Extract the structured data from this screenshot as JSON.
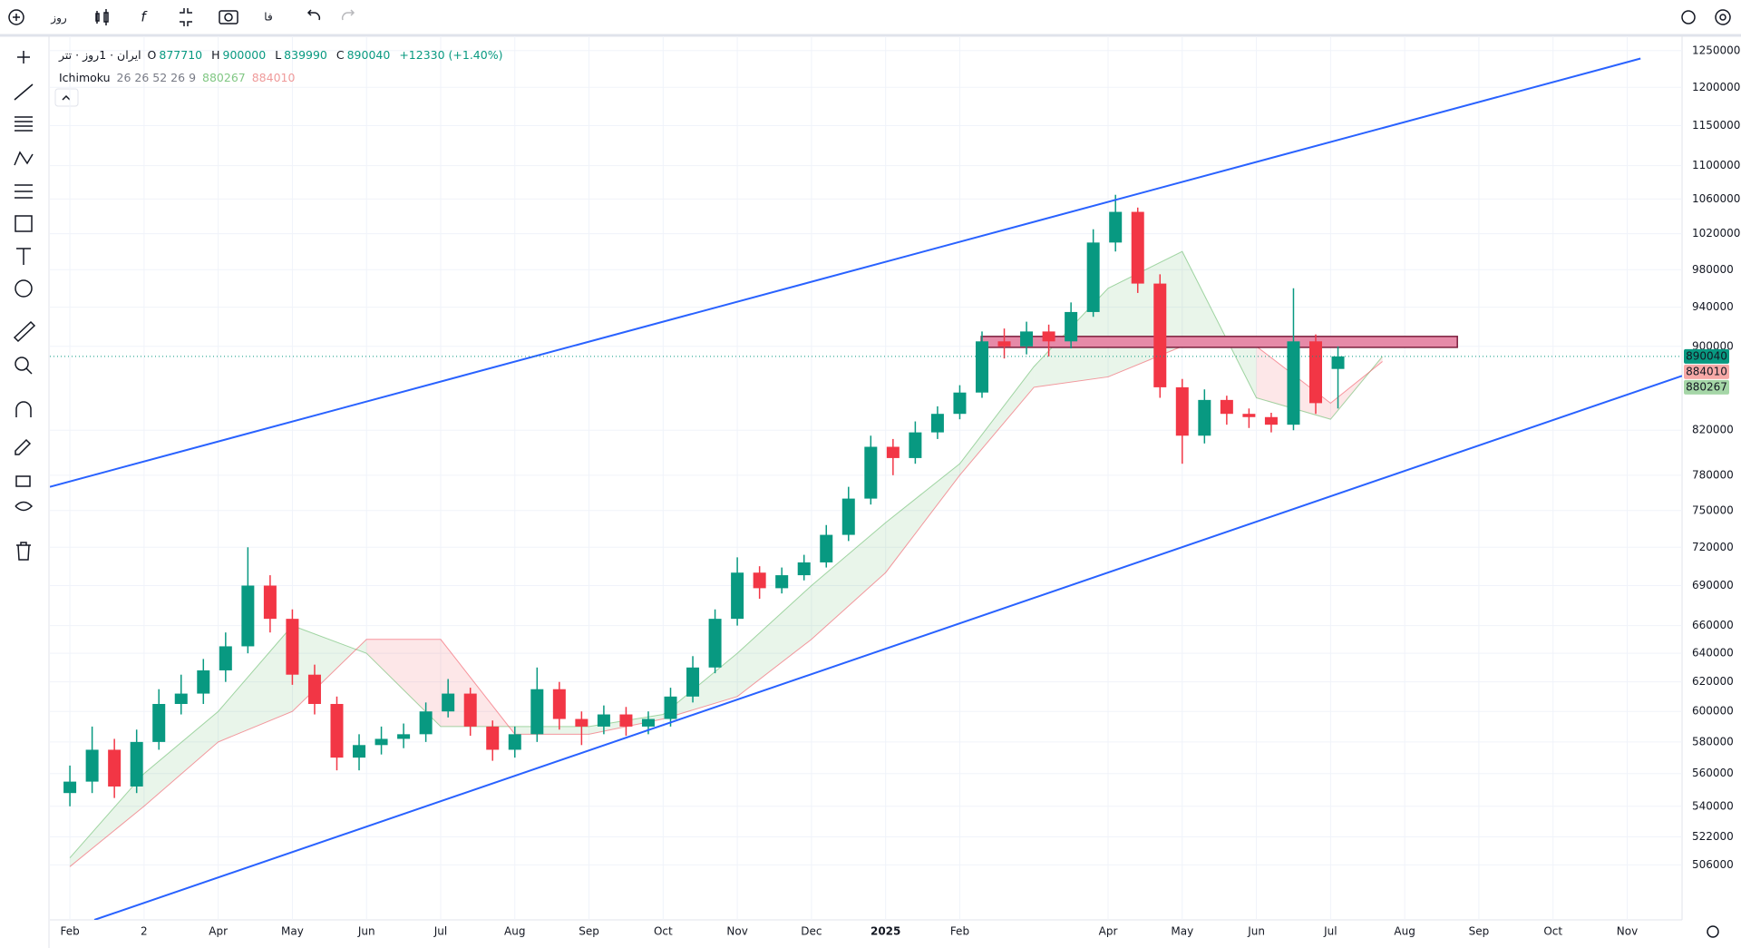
{
  "toolbar": {
    "interval": "روز",
    "language": "فا"
  },
  "legend": {
    "symbol": "ایران · 1روز · تتر",
    "fields": [
      {
        "label": "O",
        "value": "877710"
      },
      {
        "label": "H",
        "value": "900000"
      },
      {
        "label": "L",
        "value": "839990"
      },
      {
        "label": "C",
        "value": "890040"
      }
    ],
    "change": "+12330 (+1.40%)",
    "indicator": {
      "name": "Ichimoku",
      "params": "26 26 52 26 9",
      "values": [
        "880267",
        "884010"
      ]
    }
  },
  "chart_data": {
    "type": "candlestick",
    "log_scale": true,
    "grid": true,
    "up_color": "#089981",
    "down_color": "#f23645",
    "xlim": [
      -0.27,
      21.74
    ],
    "xticks": [
      {
        "value": 0,
        "label": "Feb"
      },
      {
        "value": 1,
        "label": "2"
      },
      {
        "value": 2,
        "label": "Apr"
      },
      {
        "value": 3,
        "label": "May"
      },
      {
        "value": 4,
        "label": "Jun"
      },
      {
        "value": 5,
        "label": "Jul"
      },
      {
        "value": 6,
        "label": "Aug"
      },
      {
        "value": 7,
        "label": "Sep"
      },
      {
        "value": 8,
        "label": "Oct"
      },
      {
        "value": 9,
        "label": "Nov"
      },
      {
        "value": 10,
        "label": "Dec"
      },
      {
        "value": 11,
        "label": "2025"
      },
      {
        "value": 12,
        "label": "Feb"
      },
      {
        "value": 14,
        "label": "Apr"
      },
      {
        "value": 15,
        "label": "May"
      },
      {
        "value": 16,
        "label": "Jun"
      },
      {
        "value": 17,
        "label": "Jul"
      },
      {
        "value": 18,
        "label": "Aug"
      },
      {
        "value": 19,
        "label": "Sep"
      },
      {
        "value": 20,
        "label": "Oct"
      },
      {
        "value": 21,
        "label": "Nov"
      }
    ],
    "ylim": [
      476000,
      1270000
    ],
    "yticks": [
      506000,
      522000,
      540000,
      560000,
      580000,
      600000,
      620000,
      640000,
      660000,
      690000,
      720000,
      750000,
      780000,
      820000,
      900000,
      940000,
      980000,
      1020000,
      1060000,
      1100000,
      1150000,
      1200000,
      1250000
    ],
    "x": [
      0,
      0.3,
      0.6,
      0.9,
      1.2,
      1.5,
      1.8,
      2.1,
      2.4,
      2.7,
      3,
      3.3,
      3.6,
      3.9,
      4.2,
      4.5,
      4.8,
      5.1,
      5.4,
      5.7,
      6,
      6.3,
      6.6,
      6.9,
      7.2,
      7.5,
      7.8,
      8.1,
      8.4,
      8.7,
      9,
      9.3,
      9.6,
      9.9,
      10.2,
      10.5,
      10.8,
      11.1,
      11.4,
      11.7,
      12,
      12.3,
      12.6,
      12.9,
      13.2,
      13.5,
      13.8,
      14.1,
      14.4,
      14.7,
      15,
      15.3,
      15.6,
      15.9,
      16.2,
      16.5,
      16.8,
      17.1
    ],
    "open": [
      548000,
      555000,
      575000,
      552000,
      580000,
      605000,
      612000,
      628000,
      645000,
      690000,
      665000,
      625000,
      605000,
      570000,
      578000,
      582000,
      585000,
      600000,
      612000,
      590000,
      575000,
      585000,
      615000,
      595000,
      590000,
      598000,
      590000,
      595000,
      610000,
      630000,
      665000,
      700000,
      688000,
      698000,
      708000,
      730000,
      760000,
      805000,
      795000,
      818000,
      835000,
      855000,
      905000,
      900000,
      915000,
      905000,
      935000,
      1010000,
      1045000,
      965000,
      860000,
      815000,
      848000,
      835000,
      832000,
      825000,
      905000,
      877710
    ],
    "high": [
      565000,
      590000,
      582000,
      588000,
      615000,
      625000,
      636000,
      655000,
      720000,
      698000,
      672000,
      632000,
      610000,
      585000,
      590000,
      592000,
      606000,
      622000,
      616000,
      594000,
      590000,
      630000,
      620000,
      600000,
      604000,
      603000,
      600000,
      616000,
      638000,
      672000,
      712000,
      705000,
      704000,
      714000,
      738000,
      770000,
      815000,
      812000,
      828000,
      842000,
      862000,
      915000,
      918000,
      925000,
      922000,
      945000,
      1025000,
      1065000,
      1050000,
      975000,
      868000,
      858000,
      852000,
      840000,
      836000,
      960000,
      912000,
      900000
    ],
    "low": [
      540000,
      548000,
      545000,
      548000,
      575000,
      598000,
      605000,
      620000,
      640000,
      655000,
      618000,
      598000,
      562000,
      562000,
      572000,
      576000,
      580000,
      596000,
      584000,
      568000,
      570000,
      580000,
      588000,
      578000,
      585000,
      584000,
      585000,
      590000,
      606000,
      626000,
      660000,
      680000,
      684000,
      694000,
      704000,
      725000,
      755000,
      780000,
      790000,
      812000,
      830000,
      850000,
      888000,
      892000,
      890000,
      898000,
      930000,
      1000000,
      955000,
      850000,
      790000,
      808000,
      825000,
      822000,
      818000,
      820000,
      835000,
      839990
    ],
    "close": [
      555000,
      575000,
      552000,
      580000,
      605000,
      612000,
      628000,
      645000,
      690000,
      665000,
      625000,
      605000,
      570000,
      578000,
      582000,
      585000,
      600000,
      612000,
      590000,
      575000,
      585000,
      615000,
      595000,
      590000,
      598000,
      590000,
      595000,
      610000,
      630000,
      665000,
      700000,
      688000,
      698000,
      708000,
      730000,
      760000,
      805000,
      795000,
      818000,
      835000,
      855000,
      905000,
      900000,
      915000,
      905000,
      935000,
      1010000,
      1045000,
      965000,
      860000,
      815000,
      848000,
      835000,
      832000,
      825000,
      905000,
      845000,
      890040
    ],
    "cloud": {
      "x": [
        0,
        1,
        2,
        3,
        4,
        5,
        6,
        7,
        8,
        9,
        10,
        11,
        12,
        13,
        14,
        15,
        16,
        17,
        17.7
      ],
      "span_a": [
        510000,
        560000,
        600000,
        660000,
        640000,
        590000,
        590000,
        590000,
        598000,
        640000,
        690000,
        740000,
        790000,
        880000,
        960000,
        1000000,
        850000,
        830000,
        890000
      ],
      "span_b": [
        505000,
        540000,
        580000,
        600000,
        650000,
        650000,
        585000,
        585000,
        595000,
        610000,
        650000,
        700000,
        780000,
        860000,
        870000,
        900000,
        900000,
        845000,
        885000
      ],
      "up_color": "#4caf50",
      "down_color": "#f23645"
    },
    "trend_lines": [
      {
        "x": [
          -0.27,
          21.18
        ],
        "y": [
          770000,
          1239000
        ],
        "color": "#2962ff"
      },
      {
        "x": [
          0.33,
          21.74
        ],
        "y": [
          476000,
          871000
        ],
        "color": "#2962ff"
      }
    ],
    "zone": {
      "x": [
        12.29,
        18.71
      ],
      "y": [
        899000,
        910000
      ],
      "color": "#e68aa8"
    }
  }
}
